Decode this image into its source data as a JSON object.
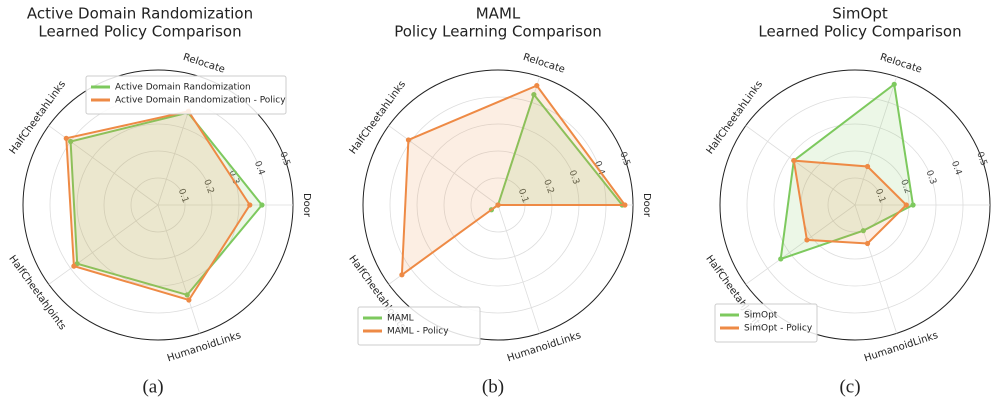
{
  "chart_data": [
    {
      "type": "radar",
      "title": [
        "Active Domain Randomization",
        "Learned Policy Comparison"
      ],
      "caption": "(a)",
      "categories": [
        "Door",
        "Relocate",
        "HalfCheetahLinks",
        "HalfCheetahJoints",
        "HumanoidLinks"
      ],
      "series": [
        {
          "name": "Active Domain Randomization",
          "color": "#7dc95e",
          "values": [
            0.385,
            0.36,
            0.4,
            0.37,
            0.35
          ]
        },
        {
          "name": "Active Domain Randomization - Policy",
          "color": "#ee8a45",
          "values": [
            0.34,
            0.365,
            0.42,
            0.385,
            0.37
          ]
        }
      ],
      "rlim": [
        0,
        0.5
      ],
      "rticks": [
        0.1,
        0.2,
        0.3,
        0.4,
        0.5
      ],
      "legend": "upper center",
      "grid": true
    },
    {
      "type": "radar",
      "title": [
        "MAML",
        "Policy Learning Comparison"
      ],
      "caption": "(b)",
      "categories": [
        "Door",
        "Relocate",
        "HalfCheetahLinks",
        "HalfCheetahJoints",
        "HumanoidLinks"
      ],
      "series": [
        {
          "name": "MAML",
          "color": "#7dc95e",
          "values": [
            0.46,
            0.43,
            0,
            0.03,
            0
          ]
        },
        {
          "name": "MAML - Policy",
          "color": "#ee8a45",
          "values": [
            0.47,
            0.465,
            0.41,
            0.44,
            0
          ]
        }
      ],
      "rlim": [
        0,
        0.5
      ],
      "rticks": [
        0.1,
        0.2,
        0.3,
        0.4,
        0.5
      ],
      "legend": "lower left",
      "grid": true
    },
    {
      "type": "radar",
      "title": [
        "SimOpt",
        "Learned Policy Comparison"
      ],
      "caption": "(c)",
      "categories": [
        "Door",
        "Relocate",
        "HalfCheetahLinks",
        "HalfCheetahJoints",
        "HumanoidLinks"
      ],
      "series": [
        {
          "name": "SimOpt",
          "color": "#7dc95e",
          "values": [
            0.215,
            0.47,
            0.28,
            0.34,
            0.1
          ]
        },
        {
          "name": "SimOpt - Policy",
          "color": "#ee8a45",
          "values": [
            0.19,
            0.15,
            0.28,
            0.22,
            0.15
          ]
        }
      ],
      "rlim": [
        0,
        0.5
      ],
      "rticks": [
        0.1,
        0.2,
        0.3,
        0.4,
        0.5
      ],
      "legend": "lower left",
      "grid": true
    }
  ]
}
